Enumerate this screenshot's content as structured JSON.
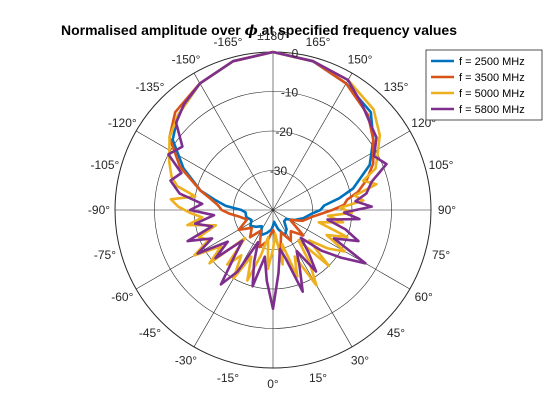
{
  "chart_data": {
    "type": "polar-line",
    "title_parts": [
      "Normalised amplitude over ",
      "ϕ",
      " at specified frequency values"
    ],
    "theta_zero": "bottom",
    "theta_direction": "counterclockwise",
    "theta_ticks": [
      {
        "deg": 0,
        "label": "0°"
      },
      {
        "deg": 15,
        "label": "15°"
      },
      {
        "deg": 30,
        "label": "30°"
      },
      {
        "deg": 45,
        "label": "45°"
      },
      {
        "deg": 60,
        "label": "60°"
      },
      {
        "deg": 75,
        "label": "75°"
      },
      {
        "deg": 90,
        "label": "90°"
      },
      {
        "deg": 105,
        "label": "105°"
      },
      {
        "deg": 120,
        "label": "120°"
      },
      {
        "deg": 135,
        "label": "135°"
      },
      {
        "deg": 150,
        "label": "150°"
      },
      {
        "deg": 165,
        "label": "165°"
      },
      {
        "deg": 180,
        "label": "±180°"
      },
      {
        "deg": -165,
        "label": "-165°"
      },
      {
        "deg": -150,
        "label": "-150°"
      },
      {
        "deg": -135,
        "label": "-135°"
      },
      {
        "deg": -120,
        "label": "-120°"
      },
      {
        "deg": -105,
        "label": "-105°"
      },
      {
        "deg": -90,
        "label": "-90°"
      },
      {
        "deg": -75,
        "label": "-75°"
      },
      {
        "deg": -60,
        "label": "-60°"
      },
      {
        "deg": -45,
        "label": "-45°"
      },
      {
        "deg": -30,
        "label": "-30°"
      },
      {
        "deg": -15,
        "label": "-15°"
      }
    ],
    "r_lim": [
      -40,
      0
    ],
    "r_ticks": [
      {
        "value": 0,
        "label": "0"
      },
      {
        "value": -10,
        "label": "-10"
      },
      {
        "value": -20,
        "label": "-20"
      },
      {
        "value": -30,
        "label": "-30"
      }
    ],
    "legend_position": "top-right",
    "series": [
      {
        "name": "f = 2500 MHz",
        "color": "#0072BD",
        "theta": [
          180,
          165,
          150,
          135,
          125,
          115,
          105,
          100,
          95,
          90,
          85,
          75,
          65,
          55,
          45,
          35,
          25,
          15,
          5,
          0,
          -5,
          -15,
          -25,
          -35,
          -45,
          -55,
          -65,
          -75,
          -85,
          -90,
          -95,
          -100,
          -105,
          -115,
          -125,
          -135,
          -150,
          -165,
          180
        ],
        "r": [
          0,
          -1,
          -3,
          -5,
          -9,
          -13,
          -19,
          -23,
          -27,
          -28,
          -30,
          -32,
          -34,
          -36,
          -36,
          -34,
          -33,
          -35,
          -37,
          -36,
          -35,
          -34,
          -33,
          -35,
          -34,
          -33,
          -34,
          -33,
          -33,
          -32,
          -28,
          -25,
          -21,
          -15,
          -9,
          -6,
          -3,
          -1,
          0
        ]
      },
      {
        "name": "f = 3500 MHz",
        "color": "#D95319",
        "theta": [
          180,
          165,
          150,
          135,
          125,
          115,
          108,
          102,
          98,
          94,
          90,
          85,
          80,
          70,
          60,
          50,
          40,
          30,
          20,
          10,
          0,
          -10,
          -20,
          -30,
          -40,
          -50,
          -60,
          -70,
          -80,
          -85,
          -90,
          -95,
          -100,
          -105,
          -115,
          -125,
          -135,
          -150,
          -165,
          180
        ],
        "r": [
          0,
          -1,
          -3,
          -6,
          -9,
          -12,
          -15,
          -18,
          -21,
          -22,
          -25,
          -28,
          -30,
          -32,
          -35,
          -30,
          -33,
          -31,
          -34,
          -29,
          -35,
          -32,
          -30,
          -34,
          -31,
          -33,
          -30,
          -33,
          -31,
          -29,
          -27,
          -26,
          -24,
          -21,
          -14,
          -8,
          -5,
          -3,
          -1,
          0
        ]
      },
      {
        "name": "f = 5000 MHz",
        "color": "#EDB120",
        "theta": [
          180,
          165,
          150,
          135,
          125,
          118,
          112,
          108,
          104,
          100,
          96,
          92,
          88,
          84,
          80,
          75,
          70,
          65,
          60,
          55,
          50,
          45,
          40,
          35,
          30,
          25,
          20,
          15,
          10,
          5,
          0,
          -5,
          -10,
          -15,
          -20,
          -25,
          -30,
          -35,
          -40,
          -45,
          -50,
          -55,
          -60,
          -65,
          -70,
          -75,
          -80,
          -84,
          -88,
          -92,
          -96,
          -100,
          -104,
          -108,
          -115,
          -125,
          -135,
          -150,
          -165,
          180
        ],
        "r": [
          0,
          -1,
          -2,
          -4,
          -7,
          -10,
          -12,
          -16,
          -13,
          -19,
          -17,
          -23,
          -20,
          -26,
          -22,
          -28,
          -20,
          -25,
          -19,
          -23,
          -28,
          -20,
          -30,
          -24,
          -18,
          -27,
          -22,
          -31,
          -26,
          -34,
          -30,
          -25,
          -33,
          -28,
          -21,
          -27,
          -20,
          -26,
          -22,
          -30,
          -19,
          -24,
          -17,
          -22,
          -20,
          -25,
          -18,
          -22,
          -19,
          -16,
          -14,
          -20,
          -15,
          -13,
          -11,
          -8,
          -6,
          -3,
          -1,
          0
        ]
      },
      {
        "name": "f = 5800 MHz",
        "color": "#7E2F8E",
        "theta": [
          180,
          165,
          150,
          140,
          132,
          125,
          118,
          112,
          106,
          100,
          96,
          92,
          88,
          84,
          80,
          75,
          70,
          65,
          60,
          55,
          50,
          45,
          40,
          35,
          30,
          25,
          20,
          15,
          10,
          5,
          0,
          -5,
          -10,
          -15,
          -20,
          -25,
          -30,
          -35,
          -40,
          -45,
          -50,
          -55,
          -60,
          -65,
          -70,
          -75,
          -80,
          -85,
          -90,
          -95,
          -100,
          -106,
          -112,
          -118,
          -125,
          -132,
          -140,
          -150,
          -165,
          180
        ],
        "r": [
          0,
          -1,
          -2,
          -5,
          -7,
          -8,
          -11,
          -9,
          -14,
          -16,
          -19,
          -15,
          -22,
          -18,
          -26,
          -21,
          -17,
          -23,
          -13,
          -19,
          -24,
          -30,
          -26,
          -21,
          -28,
          -24,
          -18,
          -27,
          -30,
          -24,
          -15,
          -22,
          -28,
          -20,
          -26,
          -31,
          -22,
          -17,
          -25,
          -29,
          -21,
          -26,
          -18,
          -23,
          -17,
          -24,
          -20,
          -25,
          -19,
          -22,
          -16,
          -13,
          -15,
          -10,
          -12,
          -7,
          -5,
          -3,
          -1,
          0
        ]
      }
    ]
  }
}
